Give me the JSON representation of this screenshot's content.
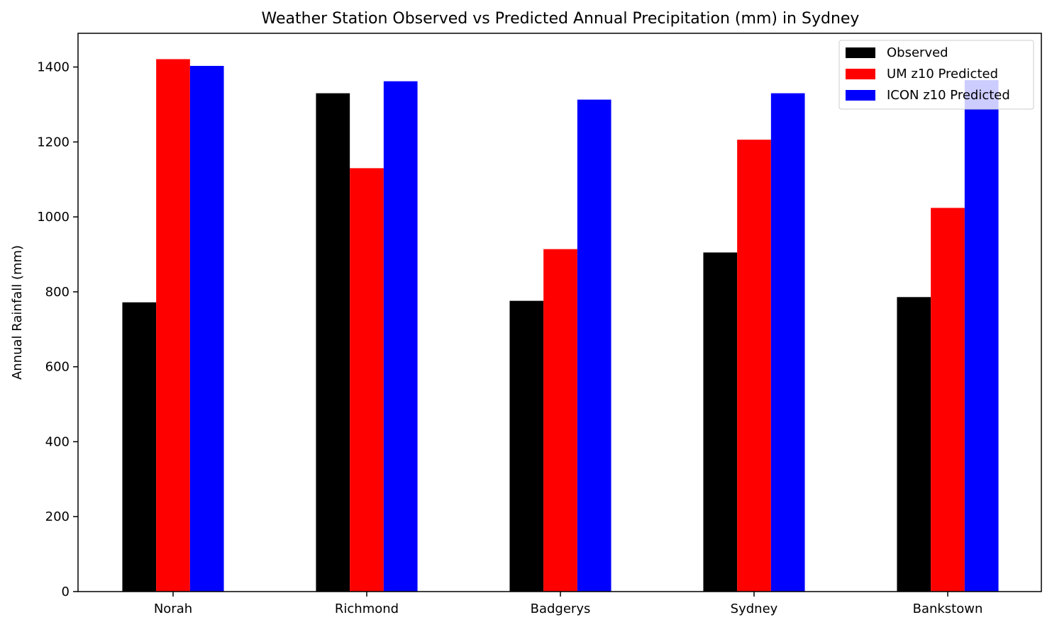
{
  "chart_data": {
    "type": "bar",
    "title": "Weather Station Observed vs Predicted Annual Precipitation (mm) in Sydney",
    "xlabel": "",
    "ylabel": "Annual Rainfall (mm)",
    "categories": [
      "Norah",
      "Richmond",
      "Badgerys",
      "Sydney",
      "Bankstown"
    ],
    "series": [
      {
        "name": "Observed",
        "color": "#000000",
        "values": [
          772,
          1330,
          776,
          905,
          786
        ]
      },
      {
        "name": "UM z10 Predicted",
        "color": "#ff0000",
        "values": [
          1421,
          1130,
          914,
          1206,
          1024
        ]
      },
      {
        "name": "ICON z10 Predicted",
        "color": "#0000ff",
        "values": [
          1403,
          1362,
          1313,
          1330,
          1365
        ]
      }
    ],
    "ylim": [
      0,
      1490
    ],
    "yticks": [
      0,
      200,
      400,
      600,
      800,
      1000,
      1200,
      1400
    ],
    "grid": false,
    "legend_position": "top-right"
  }
}
